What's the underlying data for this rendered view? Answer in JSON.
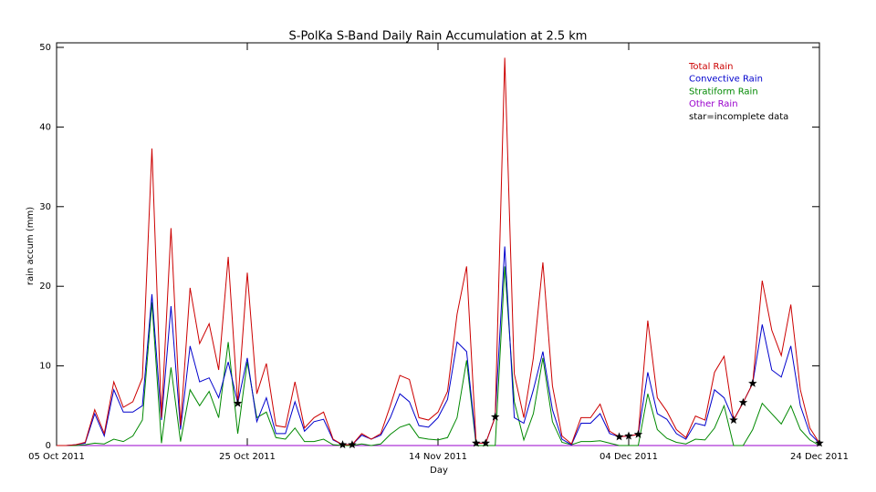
{
  "chart_data": {
    "type": "line",
    "title": "S-PolKa S-Band Daily Rain Accumulation at 2.5 km",
    "x_label": "Day",
    "y_label": "rain accum (mm)",
    "annotation": "star=incomplete data",
    "legend": "upper right",
    "x": [
      "2011-10-05",
      "2011-10-06",
      "2011-10-07",
      "2011-10-08",
      "2011-10-09",
      "2011-10-10",
      "2011-10-11",
      "2011-10-12",
      "2011-10-13",
      "2011-10-14",
      "2011-10-15",
      "2011-10-16",
      "2011-10-17",
      "2011-10-18",
      "2011-10-19",
      "2011-10-20",
      "2011-10-21",
      "2011-10-22",
      "2011-10-23",
      "2011-10-24",
      "2011-10-25",
      "2011-10-26",
      "2011-10-27",
      "2011-10-28",
      "2011-10-29",
      "2011-10-30",
      "2011-10-31",
      "2011-11-01",
      "2011-11-02",
      "2011-11-03",
      "2011-11-04",
      "2011-11-05",
      "2011-11-06",
      "2011-11-07",
      "2011-11-08",
      "2011-11-09",
      "2011-11-10",
      "2011-11-11",
      "2011-11-12",
      "2011-11-13",
      "2011-11-14",
      "2011-11-15",
      "2011-11-16",
      "2011-11-17",
      "2011-11-18",
      "2011-11-19",
      "2011-11-20",
      "2011-11-21",
      "2011-11-22",
      "2011-11-23",
      "2011-11-24",
      "2011-11-25",
      "2011-11-26",
      "2011-11-27",
      "2011-11-28",
      "2011-11-29",
      "2011-11-30",
      "2011-12-01",
      "2011-12-02",
      "2011-12-03",
      "2011-12-04",
      "2011-12-05",
      "2011-12-06",
      "2011-12-07",
      "2011-12-08",
      "2011-12-09",
      "2011-12-10",
      "2011-12-11",
      "2011-12-12",
      "2011-12-13",
      "2011-12-14",
      "2011-12-15",
      "2011-12-16",
      "2011-12-17",
      "2011-12-18",
      "2011-12-19",
      "2011-12-20",
      "2011-12-21",
      "2011-12-22",
      "2011-12-23",
      "2011-12-24"
    ],
    "series": [
      {
        "name": "Total Rain",
        "color": "#cc0000",
        "values": [
          0,
          0,
          0.1,
          0.4,
          4.5,
          1.5,
          8,
          4.8,
          5.5,
          8.5,
          37.3,
          3.5,
          27.3,
          2.5,
          19.8,
          12.8,
          15.3,
          9.5,
          23.7,
          5.3,
          21.7,
          6.5,
          10.3,
          2.5,
          2.3,
          8,
          2.2,
          3.5,
          4.2,
          0.8,
          0.1,
          0.1,
          1.5,
          0.8,
          1.5,
          5,
          8.8,
          8.3,
          3.5,
          3.2,
          4.2,
          6.8,
          16.5,
          22.5,
          0.3,
          0.3,
          3.6,
          48.7,
          9,
          3.5,
          11,
          23,
          7.5,
          1.2,
          0.2,
          3.5,
          3.5,
          5.2,
          1.8,
          1.1,
          1.2,
          1.4,
          15.7,
          6,
          4.3,
          2,
          1,
          3.7,
          3.2,
          9.2,
          11.2,
          3.2,
          5.4,
          7.8,
          20.7,
          14.5,
          11.3,
          17.7,
          7,
          2.2,
          0.3
        ]
      },
      {
        "name": "Convective Rain",
        "color": "#0000cc",
        "values": [
          0,
          0,
          0.1,
          0.3,
          4,
          1.2,
          7,
          4.2,
          4.2,
          5,
          19,
          3.2,
          17.5,
          2,
          12.5,
          8,
          8.5,
          6,
          10.5,
          5.3,
          11,
          3,
          6,
          1.5,
          1.5,
          5.5,
          1.8,
          3,
          3.3,
          0.7,
          0.1,
          0.1,
          1.3,
          0.8,
          1.3,
          3.5,
          6.5,
          5.5,
          2.5,
          2.3,
          3.5,
          5.8,
          13,
          11.8,
          0.3,
          0.3,
          3.6,
          25,
          3.5,
          2.8,
          7,
          11.8,
          4.5,
          0.8,
          0.1,
          2.8,
          2.8,
          4,
          1.5,
          1.1,
          1.2,
          1.4,
          9.2,
          4,
          3.3,
          1.5,
          0.8,
          2.8,
          2.5,
          7,
          6,
          3.2,
          5.4,
          7.8,
          15.2,
          9.5,
          8.6,
          12.5,
          5,
          1.5,
          0.3
        ]
      },
      {
        "name": "Stratiform Rain",
        "color": "#008800",
        "values": [
          0,
          0,
          0,
          0.1,
          0.3,
          0.2,
          0.8,
          0.5,
          1.2,
          3.2,
          18,
          0.3,
          9.8,
          0.5,
          7,
          5,
          6.8,
          3.5,
          13,
          1.5,
          10.5,
          3.5,
          4.2,
          1,
          0.8,
          2.2,
          0.5,
          0.5,
          0.8,
          0.1,
          0,
          0,
          0.2,
          0,
          0.2,
          1.4,
          2.3,
          2.7,
          1,
          0.8,
          0.7,
          1,
          3.5,
          10.7,
          0,
          0,
          0,
          22.5,
          5.5,
          0.7,
          4,
          11,
          3,
          0.4,
          0.1,
          0.5,
          0.5,
          0.6,
          0.3,
          0,
          0,
          0,
          6.5,
          2,
          0.9,
          0.4,
          0.2,
          0.8,
          0.7,
          2.2,
          5,
          0,
          0,
          2,
          5.3,
          4,
          2.7,
          5,
          2,
          0.7,
          0
        ]
      },
      {
        "name": "Other Rain",
        "color": "#9900cc",
        "values": [
          0,
          0,
          0,
          0,
          0,
          0,
          0,
          0,
          0,
          0,
          0,
          0,
          0,
          0,
          0,
          0,
          0,
          0,
          0,
          0,
          0,
          0,
          0,
          0,
          0,
          0,
          0,
          0,
          0,
          0,
          0,
          0,
          0,
          0,
          0,
          0,
          0,
          0,
          0,
          0,
          0,
          0,
          0,
          0,
          0,
          0,
          0,
          0,
          0,
          0,
          0,
          0,
          0,
          0,
          0,
          0,
          0,
          0,
          0,
          0,
          0,
          0,
          0,
          0,
          0,
          0,
          0,
          0,
          0,
          0,
          0,
          0,
          0,
          0,
          0,
          0,
          0,
          0,
          0,
          0,
          0
        ]
      }
    ],
    "incomplete_dates": [
      "2011-10-24",
      "2011-11-04",
      "2011-11-05",
      "2011-11-18",
      "2011-11-19",
      "2011-11-20",
      "2011-12-03",
      "2011-12-04",
      "2011-12-05",
      "2011-12-15",
      "2011-12-16",
      "2011-12-17",
      "2011-12-24"
    ],
    "xlim": [
      "2011-10-05",
      "2011-12-24"
    ],
    "xticks": [
      {
        "value": "2011-10-05",
        "label": "05 Oct 2011"
      },
      {
        "value": "2011-10-25",
        "label": "25 Oct 2011"
      },
      {
        "value": "2011-11-14",
        "label": "14 Nov 2011"
      },
      {
        "value": "2011-12-04",
        "label": "04 Dec 2011"
      },
      {
        "value": "2011-12-24",
        "label": "24 Dec 2011"
      }
    ],
    "ylim": [
      0,
      50
    ],
    "yticks": [
      0,
      10,
      20,
      30,
      40,
      50
    ],
    "grid": false
  }
}
